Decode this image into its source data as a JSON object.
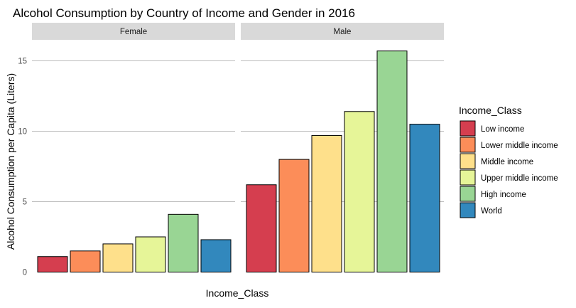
{
  "chart_data": {
    "type": "bar",
    "title": "Alcohol Consumption by Country of Income and Gender in 2016",
    "xlabel": "Income_Class",
    "ylabel": "Alcohol Consumption per Capita (Liters)",
    "ylim": [
      0,
      16.3
    ],
    "yticks": [
      0,
      5,
      10,
      15
    ],
    "grid": true,
    "legend": {
      "title": "Income_Class",
      "position": "right"
    },
    "categories": [
      "Low income",
      "Lower middle income",
      "Middle income",
      "Upper middle income",
      "High income",
      "World"
    ],
    "colors": [
      "#D53E4F",
      "#FC8D59",
      "#FEE08B",
      "#E6F598",
      "#99D594",
      "#3288BD"
    ],
    "bar_outline_color": "#000000",
    "grid_color": "#bdbdbd",
    "strip_fill": "#d9d9d9",
    "facets": [
      {
        "label": "Female",
        "values": [
          1.1,
          1.5,
          2.0,
          2.5,
          4.1,
          2.3
        ]
      },
      {
        "label": "Male",
        "values": [
          6.2,
          8.0,
          9.7,
          11.4,
          15.7,
          10.5
        ]
      }
    ]
  }
}
